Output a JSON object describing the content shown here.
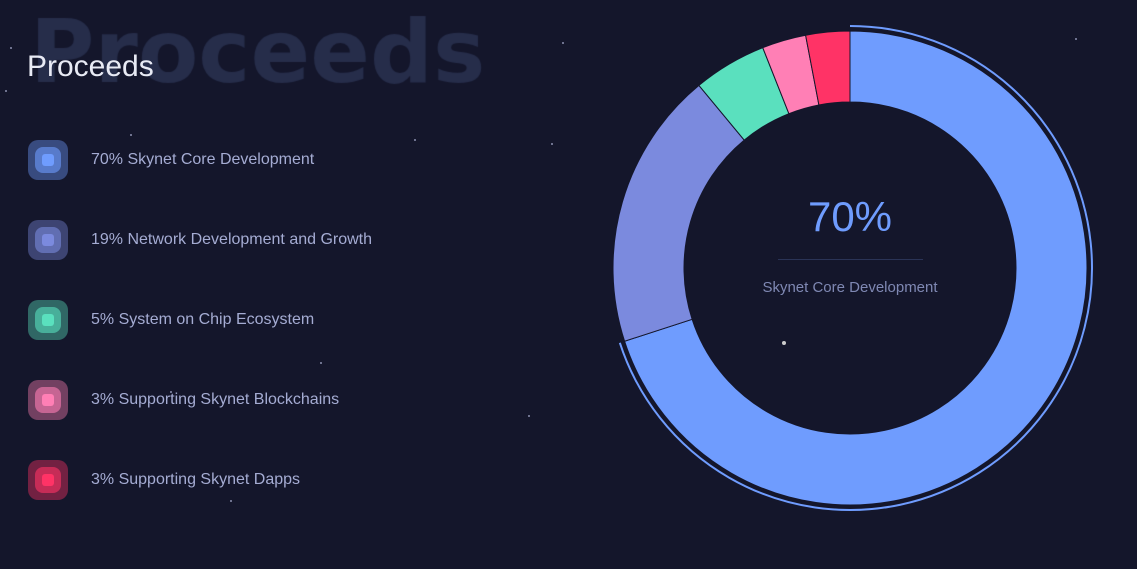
{
  "section": {
    "background_title": "Proceeds",
    "title": "Proceeds"
  },
  "legend": [
    {
      "label": "70% Skynet Core Development",
      "color": "#6f9cfe"
    },
    {
      "label": "19% Network Development and Growth",
      "color": "#7b8ade"
    },
    {
      "label": "5% System on Chip Ecosystem",
      "color": "#5ae0be"
    },
    {
      "label": "3% Supporting Skynet Blockchains",
      "color": "#ff7fb5"
    },
    {
      "label": "3% Supporting Skynet Dapps",
      "color": "#ff3366"
    }
  ],
  "center": {
    "value": "70%",
    "label": "Skynet Core Development"
  },
  "chart_data": {
    "type": "pie",
    "variant": "donut",
    "categories": [
      "Skynet Core Development",
      "Network Development and Growth",
      "System on Chip Ecosystem",
      "Supporting Skynet Blockchains",
      "Supporting Skynet Dapps"
    ],
    "values": [
      70,
      19,
      5,
      3,
      3
    ],
    "colors": [
      "#6f9cfe",
      "#7b8ade",
      "#5ae0be",
      "#ff7fb5",
      "#ff3366"
    ],
    "highlighted": "Skynet Core Development",
    "legend_placement": "left"
  }
}
